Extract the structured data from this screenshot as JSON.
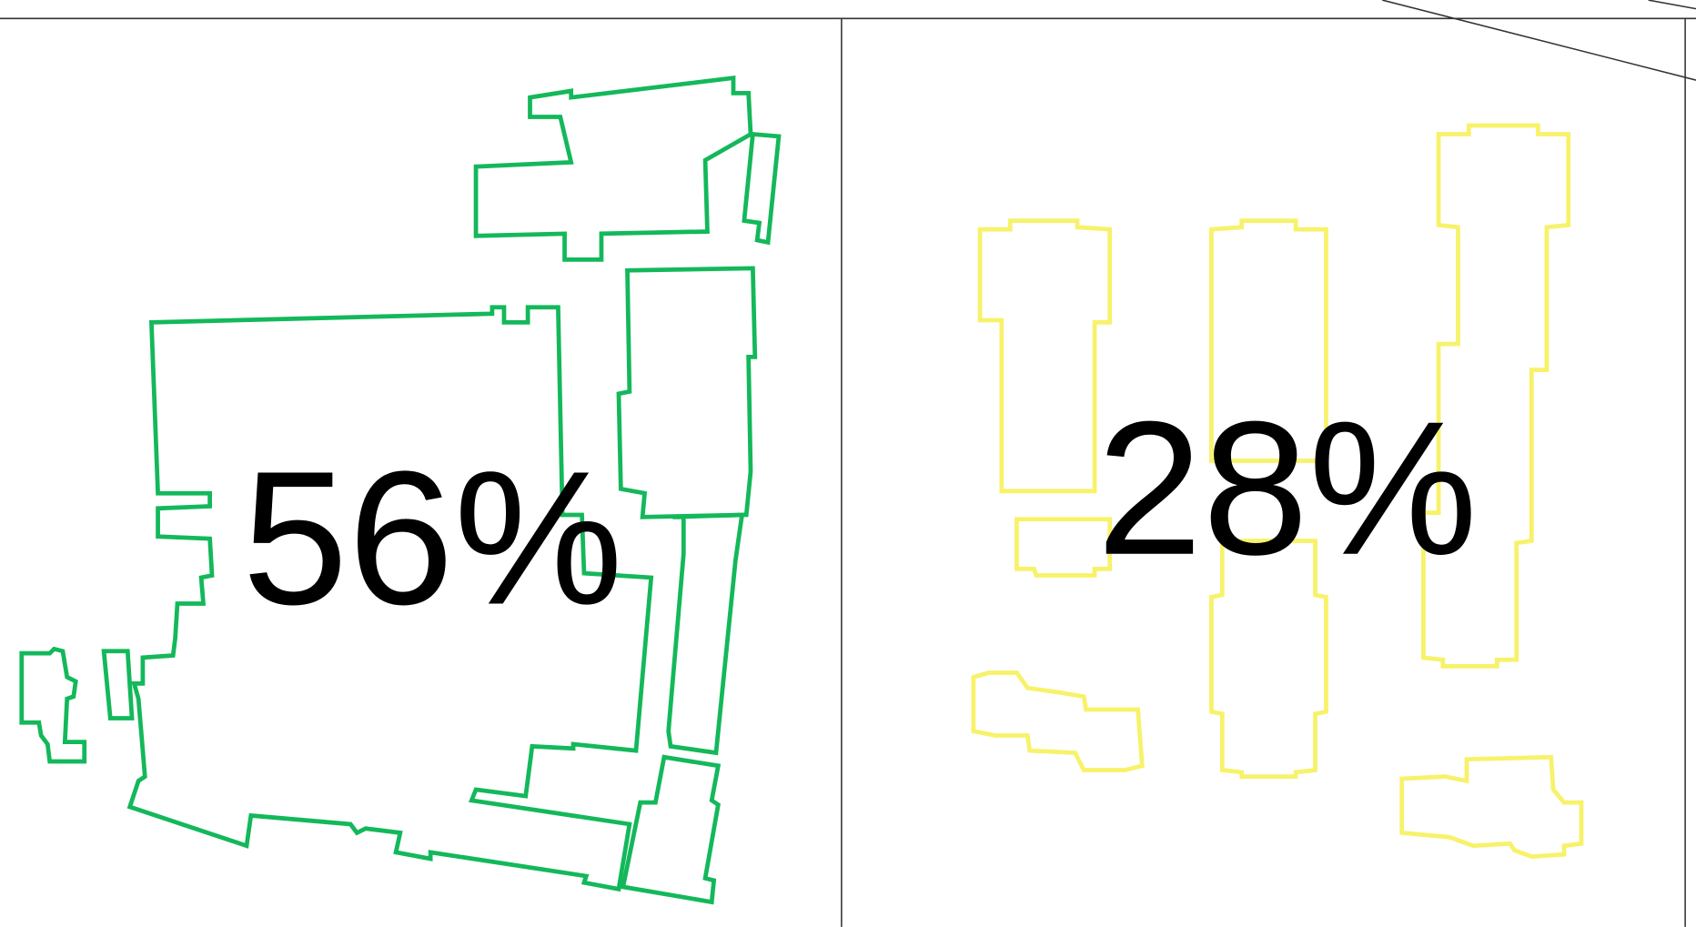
{
  "panels": [
    {
      "label": "56%"
    },
    {
      "label": "28%"
    }
  ]
}
